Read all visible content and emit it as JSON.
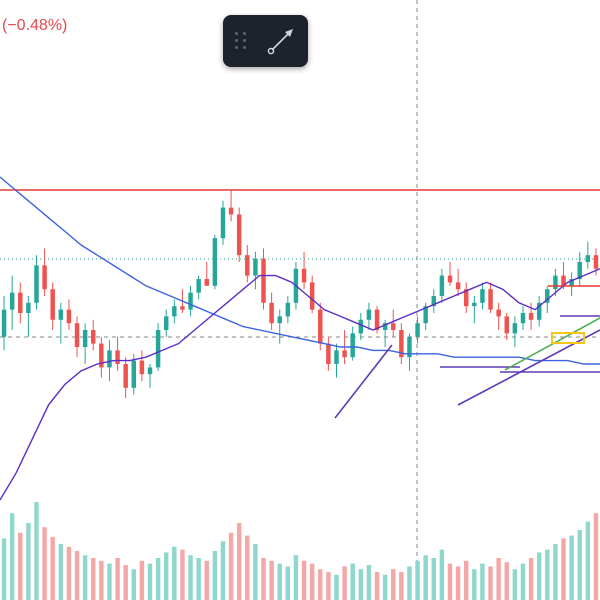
{
  "header": {
    "price_change_text": "(−0.48%)"
  },
  "toolbar": {
    "drag_handle_icon": "grip-dots-icon",
    "tool_icon": "trend-line-icon"
  },
  "colors": {
    "candle_up": "#26a69a",
    "candle_down": "#ef5350",
    "volume_up": "#8fd6cc",
    "volume_down": "#f4a7a7",
    "moving_average": "#3b63e0",
    "moving_average_short": "#5b2dc9",
    "resistance_line": "#e53935",
    "dotted_level": "#26a69a",
    "drawing_purple": "#5c3bb5",
    "drawing_green": "#4caf50",
    "drawing_yellow": "#f5c518",
    "drawing_red": "#e53935"
  },
  "chart_data": {
    "type": "candlestick",
    "y_scale": {
      "min": 0,
      "max": 100
    },
    "volume_scale": {
      "min": 0,
      "max": 100
    },
    "candles_ohlc": [
      [
        48,
        60,
        44,
        56
      ],
      [
        56,
        66,
        50,
        61
      ],
      [
        61,
        64,
        52,
        55
      ],
      [
        55,
        60,
        48,
        58
      ],
      [
        58,
        72,
        56,
        69
      ],
      [
        69,
        74,
        60,
        62
      ],
      [
        62,
        64,
        50,
        53
      ],
      [
        53,
        58,
        46,
        56
      ],
      [
        56,
        59,
        50,
        52
      ],
      [
        52,
        54,
        42,
        45
      ],
      [
        45,
        52,
        40,
        50
      ],
      [
        50,
        53,
        44,
        46
      ],
      [
        46,
        48,
        36,
        39
      ],
      [
        39,
        47,
        35,
        44
      ],
      [
        44,
        48,
        38,
        40
      ],
      [
        40,
        42,
        30,
        33
      ],
      [
        33,
        43,
        31,
        41
      ],
      [
        41,
        44,
        35,
        37
      ],
      [
        37,
        40,
        33,
        39
      ],
      [
        39,
        52,
        38,
        50
      ],
      [
        50,
        56,
        48,
        54
      ],
      [
        54,
        59,
        52,
        57
      ],
      [
        57,
        62,
        55,
        56
      ],
      [
        56,
        63,
        54,
        61
      ],
      [
        61,
        66,
        59,
        65
      ],
      [
        65,
        70,
        63,
        63
      ],
      [
        63,
        78,
        62,
        77
      ],
      [
        77,
        88,
        75,
        86
      ],
      [
        86,
        91,
        82,
        84
      ],
      [
        84,
        86,
        70,
        72
      ],
      [
        72,
        75,
        64,
        66
      ],
      [
        66,
        73,
        62,
        71
      ],
      [
        71,
        74,
        56,
        58
      ],
      [
        58,
        61,
        50,
        52
      ],
      [
        52,
        56,
        46,
        54
      ],
      [
        54,
        60,
        52,
        58
      ],
      [
        58,
        70,
        56,
        68
      ],
      [
        68,
        73,
        62,
        64
      ],
      [
        64,
        66,
        55,
        56
      ],
      [
        56,
        58,
        44,
        46
      ],
      [
        46,
        48,
        38,
        40
      ],
      [
        40,
        46,
        36,
        44
      ],
      [
        44,
        50,
        40,
        42
      ],
      [
        42,
        51,
        41,
        49
      ],
      [
        49,
        55,
        47,
        53
      ],
      [
        53,
        58,
        50,
        56
      ],
      [
        56,
        57,
        49,
        50
      ],
      [
        50,
        53,
        45,
        52
      ],
      [
        52,
        56,
        48,
        50
      ],
      [
        50,
        52,
        40,
        42
      ],
      [
        42,
        49,
        38,
        48
      ],
      [
        48,
        54,
        46,
        52
      ],
      [
        52,
        58,
        50,
        57
      ],
      [
        57,
        62,
        55,
        60
      ],
      [
        60,
        68,
        58,
        66
      ],
      [
        66,
        70,
        63,
        64
      ],
      [
        64,
        68,
        60,
        62
      ],
      [
        62,
        64,
        55,
        57
      ],
      [
        57,
        60,
        52,
        58
      ],
      [
        58,
        64,
        56,
        62
      ],
      [
        62,
        64,
        55,
        56
      ],
      [
        56,
        58,
        50,
        54
      ],
      [
        54,
        55,
        47,
        49
      ],
      [
        49,
        54,
        45,
        52
      ],
      [
        52,
        57,
        50,
        55
      ],
      [
        55,
        58,
        50,
        53
      ],
      [
        53,
        60,
        51,
        58
      ],
      [
        58,
        63,
        55,
        62
      ],
      [
        62,
        68,
        60,
        66
      ],
      [
        66,
        70,
        62,
        63
      ],
      [
        63,
        67,
        60,
        65
      ],
      [
        65,
        73,
        63,
        70
      ],
      [
        70,
        76,
        68,
        72
      ],
      [
        72,
        74,
        66,
        68
      ]
    ],
    "volumes": [
      44,
      62,
      48,
      55,
      70,
      52,
      45,
      40,
      38,
      35,
      32,
      30,
      28,
      26,
      30,
      25,
      22,
      28,
      26,
      30,
      34,
      38,
      36,
      32,
      30,
      28,
      35,
      42,
      48,
      55,
      46,
      40,
      30,
      28,
      26,
      24,
      32,
      28,
      26,
      22,
      20,
      18,
      24,
      26,
      22,
      25,
      20,
      18,
      22,
      20,
      24,
      28,
      32,
      30,
      36,
      26,
      24,
      28,
      22,
      26,
      24,
      30,
      27,
      22,
      26,
      30,
      34,
      36,
      40,
      44,
      46,
      50,
      56,
      62
    ],
    "ma_long": [
      95,
      91,
      87,
      83,
      79,
      75,
      72,
      69,
      66,
      63,
      61,
      59,
      57,
      55,
      53,
      51,
      50,
      49,
      48,
      47,
      46,
      45,
      45,
      44,
      44,
      43,
      43,
      43,
      42,
      42,
      42,
      42,
      42,
      41,
      41,
      41,
      40,
      40
    ],
    "ma_short": [
      0,
      8,
      18,
      28,
      34,
      38,
      40,
      41,
      41,
      42,
      44,
      46,
      50,
      54,
      58,
      62,
      66,
      66,
      64,
      60,
      56,
      54,
      52,
      50,
      52,
      54,
      56,
      58,
      60,
      62,
      64,
      62,
      58,
      56,
      60,
      64,
      66,
      68
    ]
  }
}
